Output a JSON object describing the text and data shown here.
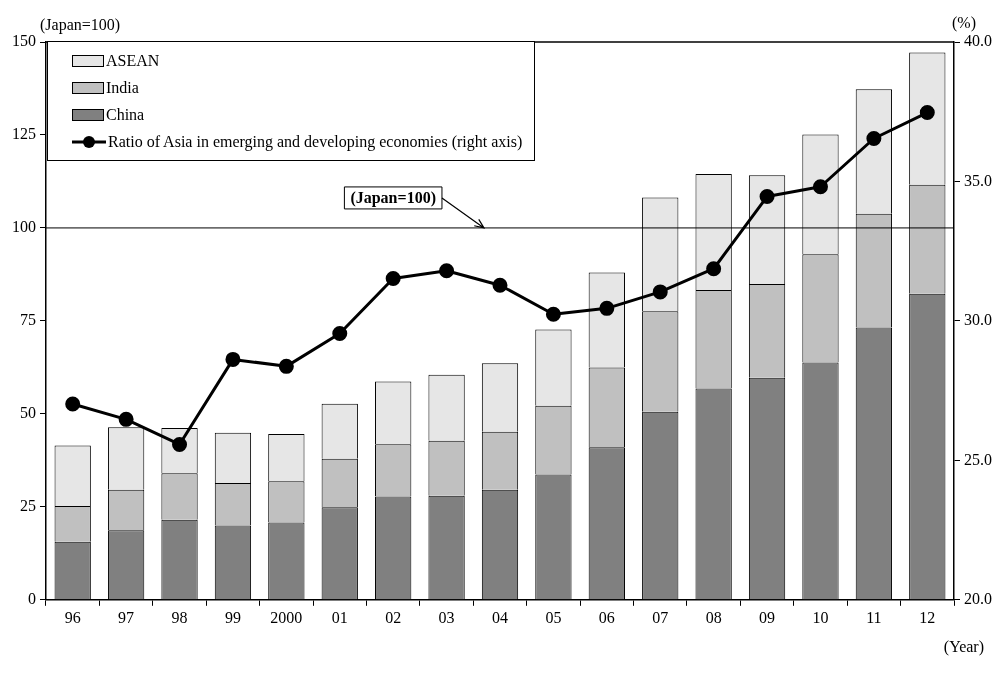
{
  "chart_data": {
    "type": "bar",
    "stacked": true,
    "xlabel": "(Year)",
    "ylabel": "(Japan=100)",
    "y2label": "(%)",
    "categories": [
      "96",
      "97",
      "98",
      "99",
      "2000",
      "01",
      "02",
      "03",
      "04",
      "05",
      "06",
      "07",
      "08",
      "09",
      "10",
      "11",
      "12"
    ],
    "series": [
      {
        "name": "China",
        "color": "#808080",
        "values": [
          15.6,
          18.7,
          21.5,
          20.0,
          20.8,
          24.9,
          27.8,
          28.0,
          29.6,
          33.7,
          41.0,
          50.6,
          56.8,
          59.7,
          63.8,
          73.2,
          82.3
        ]
      },
      {
        "name": "India",
        "color": "#c0c0c0",
        "values": [
          9.6,
          10.9,
          12.5,
          11.4,
          11.1,
          13.0,
          14.0,
          14.8,
          15.6,
          18.5,
          21.5,
          27.0,
          26.5,
          25.2,
          29.1,
          30.6,
          29.3
        ]
      },
      {
        "name": "ASEAN",
        "color": "#e6e6e6",
        "values": [
          16.3,
          16.8,
          12.2,
          13.5,
          12.7,
          14.8,
          16.9,
          17.7,
          18.4,
          20.5,
          25.5,
          30.6,
          31.2,
          29.3,
          32.2,
          33.5,
          35.6
        ]
      },
      {
        "name": "Ratio of Asia in emerging and developing economies (right axis)",
        "type": "line",
        "axis": "y2",
        "color": "#000000",
        "values": [
          27.02,
          26.47,
          25.57,
          28.62,
          28.37,
          29.55,
          31.52,
          31.8,
          31.28,
          30.24,
          30.45,
          31.04,
          31.87,
          34.46,
          34.81,
          36.54,
          37.47
        ]
      }
    ],
    "ylim": [
      0,
      150
    ],
    "yticks": [
      0,
      25,
      50,
      75,
      100,
      125,
      150
    ],
    "y2lim": [
      20,
      40
    ],
    "y2ticks": [
      {
        "value": 20,
        "label": "20.0"
      },
      {
        "value": 25,
        "label": "25.0"
      },
      {
        "value": 30,
        "label": "30.0"
      },
      {
        "value": 35,
        "label": "35.0"
      },
      {
        "value": 40,
        "label": "40.0"
      }
    ],
    "ref_lines": [
      {
        "axis": "y",
        "value": 100,
        "label": "(Japan=100)",
        "color": "#000000"
      }
    ],
    "legend": "top left",
    "marker": "circle",
    "line_style": "solid"
  }
}
